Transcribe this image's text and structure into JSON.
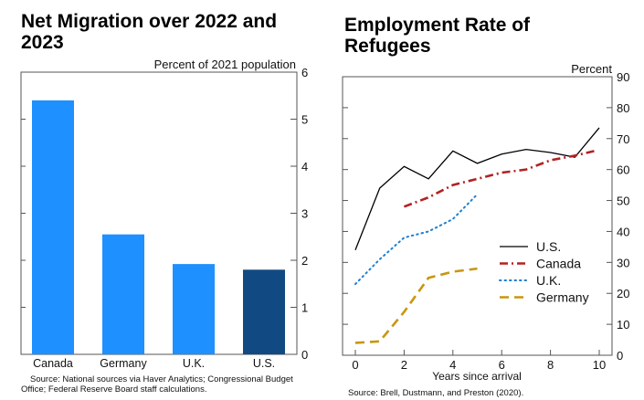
{
  "chart_data": [
    {
      "type": "bar",
      "title": "Net Migration over 2022 and 2023",
      "ylabel": "Percent of 2021 population",
      "ylim": [
        0,
        6
      ],
      "yticks": [
        0,
        1,
        2,
        3,
        4,
        5,
        6
      ],
      "categories": [
        "Canada",
        "Germany",
        "U.K.",
        "U.S."
      ],
      "values": [
        5.4,
        2.55,
        1.92,
        1.8
      ],
      "colors": [
        "#1e90ff",
        "#1e90ff",
        "#1e90ff",
        "#114a82"
      ],
      "source": "Source: National sources via Haver Analytics; Congressional Budget Office; Federal Reserve Board staff calculations."
    },
    {
      "type": "line",
      "title": "Employment Rate of Refugees",
      "ylabel": "Percent",
      "xlabel": "Years since arrival",
      "ylim": [
        0,
        90
      ],
      "xlim": [
        0,
        10
      ],
      "yticks": [
        0,
        10,
        20,
        30,
        40,
        50,
        60,
        70,
        80,
        90
      ],
      "xticks": [
        0,
        2,
        4,
        6,
        8,
        10
      ],
      "legend": "bottom-right",
      "series": [
        {
          "name": "U.S.",
          "color": "#000000",
          "dash": "",
          "x": [
            0,
            1,
            2,
            3,
            4,
            5,
            6,
            7,
            8,
            9,
            10
          ],
          "y": [
            34,
            54,
            61,
            57,
            66,
            62,
            65,
            66.5,
            65.5,
            64,
            73.5
          ]
        },
        {
          "name": "Canada",
          "color": "#b22222",
          "dash": "9,4,2,4",
          "x": [
            2,
            3,
            4,
            5,
            6,
            7,
            8,
            9,
            9.8
          ],
          "y": [
            48,
            51,
            55,
            57,
            59,
            60,
            63,
            64.5,
            66
          ]
        },
        {
          "name": "U.K.",
          "color": "#1e7fd0",
          "dash": "1.5,4",
          "x": [
            0,
            1,
            2,
            3,
            4,
            5
          ],
          "y": [
            23,
            31,
            38,
            40,
            44,
            52
          ]
        },
        {
          "name": "Germany",
          "color": "#c8960f",
          "dash": "10,6",
          "x": [
            0,
            1,
            2,
            3,
            4,
            5
          ],
          "y": [
            4,
            4.5,
            14,
            25,
            27,
            28
          ]
        }
      ],
      "source": "Source: Brell, Dustmann, and Preston (2020)."
    }
  ]
}
